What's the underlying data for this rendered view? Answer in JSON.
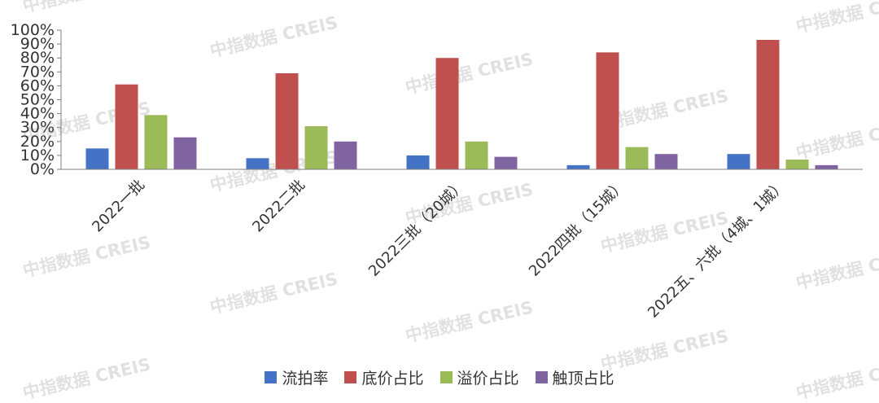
{
  "watermark": "中指数据 CREIS",
  "chart_data": {
    "type": "bar",
    "categories": [
      "2022一批",
      "2022二批",
      "2022三批（20城）",
      "2022四批（15城）",
      "2022五、六批（4城、1城）"
    ],
    "series": [
      {
        "name": "流拍率",
        "color": "#4472c4",
        "values": [
          15,
          8,
          10,
          3,
          11
        ]
      },
      {
        "name": "底价占比",
        "color": "#c0504d",
        "values": [
          61,
          69,
          80,
          84,
          93
        ]
      },
      {
        "name": "溢价占比",
        "color": "#9bbb59",
        "values": [
          39,
          31,
          20,
          16,
          7
        ]
      },
      {
        "name": "触顶占比",
        "color": "#8064a2",
        "values": [
          23,
          20,
          9,
          11,
          3
        ]
      }
    ],
    "yticks": [
      "0%",
      "10%",
      "20%",
      "30%",
      "40%",
      "50%",
      "60%",
      "70%",
      "80%",
      "90%",
      "100%"
    ],
    "ylim": [
      0,
      100
    ],
    "grid": false,
    "legend_position": "bottom"
  }
}
